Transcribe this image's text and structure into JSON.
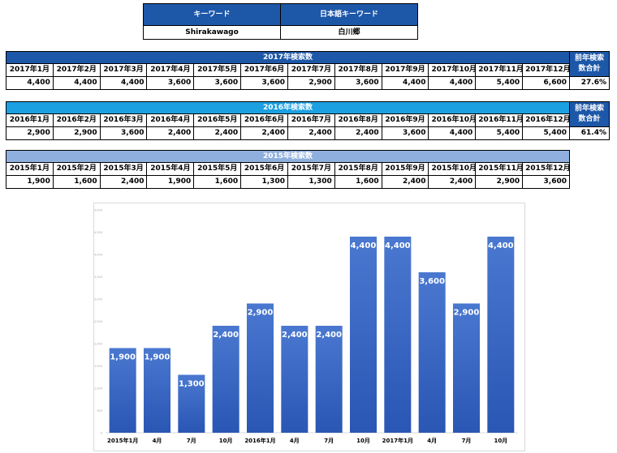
{
  "keywords": {
    "header_en": "キーワード",
    "header_ja": "日本語キーワード",
    "value_en": "Shirakawago",
    "value_ja": "白川郷"
  },
  "tables": [
    {
      "id": "t2017",
      "title": "2017年検索数",
      "side_label": "前年検索数合計",
      "side_value": "27.6%",
      "months": [
        "2017年1月",
        "2017年2月",
        "2017年3月",
        "2017年4月",
        "2017年5月",
        "2017年6月",
        "2017年7月",
        "2017年8月",
        "2017年9月",
        "2017年10月",
        "2017年11月",
        "2017年12月"
      ],
      "values": [
        "4,400",
        "4,400",
        "4,400",
        "3,600",
        "3,600",
        "3,600",
        "2,900",
        "3,600",
        "4,400",
        "4,400",
        "5,400",
        "6,600"
      ]
    },
    {
      "id": "t2016",
      "title": "2016年検索数",
      "side_label": "前年検索数合計",
      "side_value": "61.4%",
      "months": [
        "2016年1月",
        "2016年2月",
        "2016年3月",
        "2016年4月",
        "2016年5月",
        "2016年6月",
        "2016年7月",
        "2016年8月",
        "2016年9月",
        "2016年10月",
        "2016年11月",
        "2016年12月"
      ],
      "values": [
        "2,900",
        "2,900",
        "3,600",
        "2,400",
        "2,400",
        "2,400",
        "2,400",
        "2,400",
        "3,600",
        "4,400",
        "5,400",
        "5,400"
      ]
    },
    {
      "id": "t2015",
      "title": "2015年検索数",
      "side_label": "",
      "side_value": "",
      "months": [
        "2015年1月",
        "2015年2月",
        "2015年3月",
        "2015年4月",
        "2015年5月",
        "2015年6月",
        "2015年7月",
        "2015年8月",
        "2015年9月",
        "2015年10月",
        "2015年11月",
        "2015年12月"
      ],
      "values": [
        "1,900",
        "1,600",
        "2,400",
        "1,900",
        "1,600",
        "1,300",
        "1,300",
        "1,600",
        "2,400",
        "2,400",
        "2,900",
        "3,600"
      ]
    }
  ],
  "chart_data": {
    "type": "bar",
    "categories": [
      "2015年1月",
      "4月",
      "7月",
      "10月",
      "2016年1月",
      "4月",
      "7月",
      "10月",
      "2017年1月",
      "4月",
      "7月",
      "10月"
    ],
    "values": [
      1900,
      1900,
      1300,
      2400,
      2900,
      2400,
      2400,
      4400,
      4400,
      3600,
      2900,
      4400
    ],
    "value_labels": [
      "1,900",
      "1,900",
      "1,300",
      "2,400",
      "2,900",
      "2,400",
      "2,400",
      "4,400",
      "4,400",
      "3,600",
      "2,900",
      "4,400"
    ],
    "ylim": [
      0,
      5000
    ],
    "yticks": [
      "0",
      "500",
      "1,000",
      "1,500",
      "2,000",
      "2,500",
      "3,000",
      "3,500",
      "4,000",
      "4,500",
      "5,000"
    ],
    "grid": false,
    "bar_color_top": "#4a78d0",
    "bar_color_bottom": "#2a56b4"
  }
}
